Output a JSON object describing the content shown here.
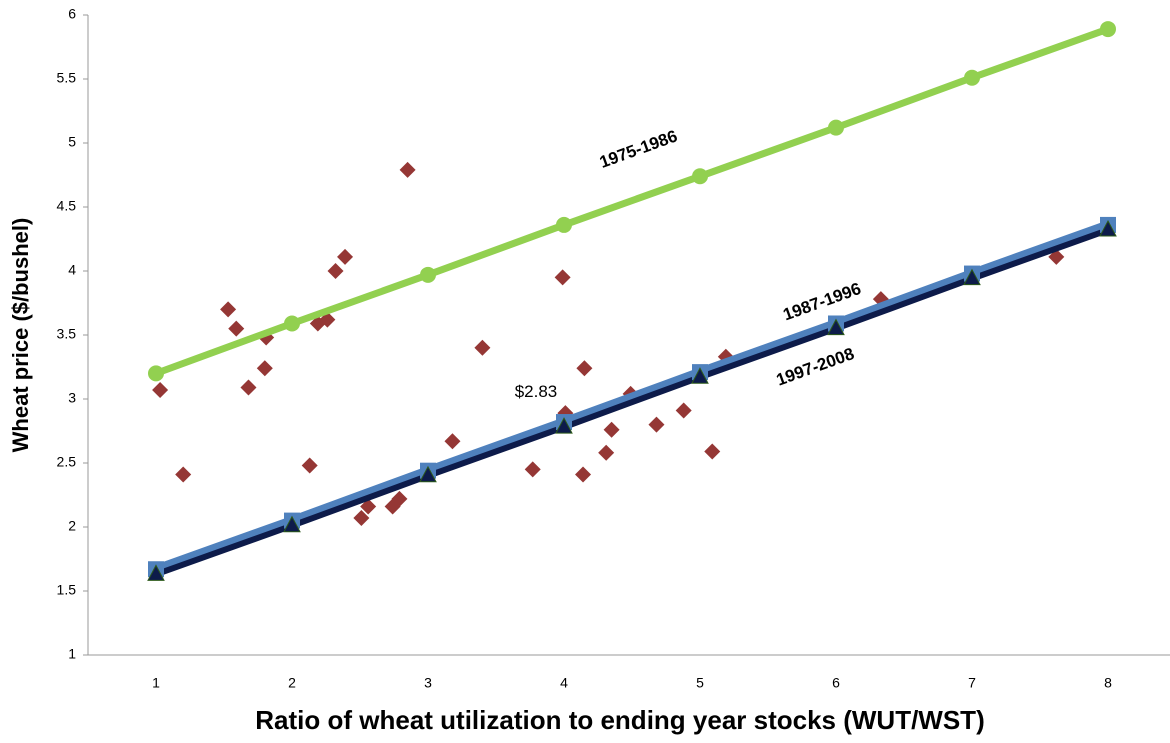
{
  "chart_data": {
    "type": "line",
    "x_label": "Ratio of wheat utilization to ending year stocks (WUT/WST)",
    "y_label": "Wheat price ($/bushel)",
    "x": [
      1,
      2,
      3,
      4,
      5,
      6,
      7,
      8
    ],
    "xlim": [
      0.5,
      8.5
    ],
    "xticks": [
      1,
      2,
      3,
      4,
      5,
      6,
      7,
      8
    ],
    "ylim": [
      1,
      6
    ],
    "yticks": [
      1,
      1.5,
      2,
      2.5,
      3,
      3.5,
      4,
      4.5,
      5,
      5.5,
      6
    ],
    "grid": false,
    "series": [
      {
        "name": "1975-1986",
        "color": "#92d050",
        "marker": "circle",
        "values": [
          3.2,
          3.59,
          3.97,
          4.36,
          4.74,
          5.12,
          5.51,
          5.89
        ]
      },
      {
        "name": "1987-1996",
        "color": "#4f81bd",
        "marker": "square",
        "values": [
          1.67,
          2.05,
          2.44,
          2.82,
          3.21,
          3.59,
          3.98,
          4.36
        ]
      },
      {
        "name": "1997-2008",
        "color": "#0d1b4a",
        "marker": "triangle",
        "values": [
          1.63,
          2.01,
          2.4,
          2.78,
          3.17,
          3.55,
          3.94,
          4.32
        ]
      }
    ],
    "scatter": {
      "color": "#953735",
      "x": [
        1.03,
        1.2,
        1.53,
        1.59,
        1.68,
        1.81,
        1.8,
        2.13,
        2.19,
        2.26,
        2.32,
        2.39,
        2.51,
        2.56,
        2.74,
        2.79,
        2.85,
        3.18,
        3.4,
        3.77,
        3.99,
        4.01,
        4.15,
        4.14,
        4.35,
        4.31,
        4.49,
        4.68,
        4.88,
        5.09,
        5.19,
        6.33,
        7.62
      ],
      "values": [
        3.07,
        2.41,
        3.7,
        3.55,
        3.09,
        3.48,
        3.24,
        2.48,
        3.59,
        3.62,
        4.0,
        4.11,
        2.07,
        2.16,
        2.16,
        2.22,
        4.79,
        2.67,
        3.4,
        2.45,
        3.95,
        2.89,
        3.24,
        2.41,
        2.76,
        2.58,
        3.04,
        2.8,
        2.91,
        2.59,
        3.33,
        3.78,
        4.11
      ]
    },
    "annotations": [
      "$2.83"
    ]
  }
}
